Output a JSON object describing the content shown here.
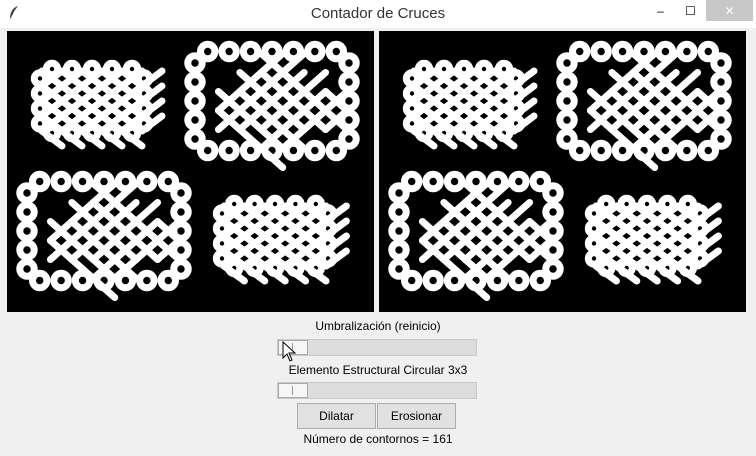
{
  "window": {
    "title": "Contador de Cruces",
    "minimize_glyph": "‒",
    "maximize_glyph": "☐",
    "close_glyph": "✕",
    "app_icon": "feather-icon"
  },
  "panels": {
    "left": {
      "content": "celtic-knot-binary-image"
    },
    "right": {
      "content": "celtic-knot-processed-image"
    }
  },
  "threshold": {
    "label": "Umbralización (reinicio)",
    "value_fraction": 0.0
  },
  "structuring_element": {
    "label": "Elemento Estructural Circular 3x3",
    "value_fraction": 0.0
  },
  "buttons": {
    "dilate": "Dilatar",
    "erode": "Erosionar"
  },
  "status": {
    "text": "Número de contornos = 161"
  },
  "colors": {
    "titlebar_bg": "#ffffff",
    "window_bg": "#f0f0f0",
    "image_bg": "#000000",
    "knot": "#ffffff",
    "close_hover": "#c7c7c7"
  }
}
